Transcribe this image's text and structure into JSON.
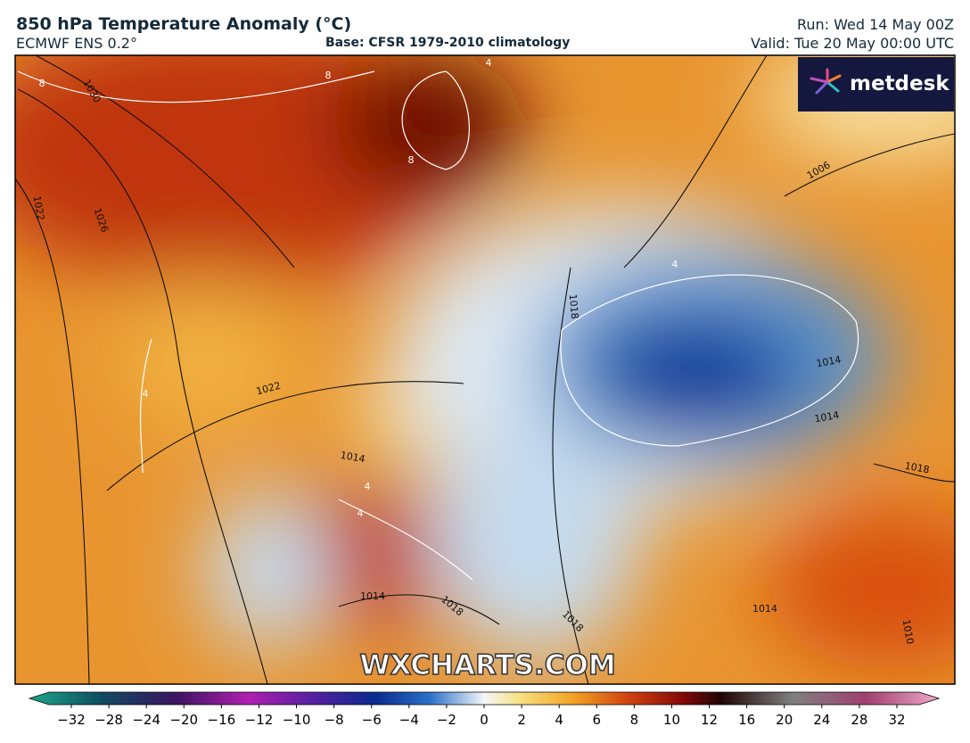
{
  "header": {
    "title": "850 hPa Temperature Anomaly (°C)",
    "model": "ECMWF ENS 0.2°",
    "base": "Base: CFSR 1979-2010 climatology",
    "run": "Run: Wed 14 May 00Z",
    "valid": "Valid: Tue 20 May 00:00 UTC"
  },
  "logo": "metdesk",
  "watermark": "WXCHARTS.COM",
  "contour_labels": [
    "8",
    "8",
    "1030",
    "4",
    "8",
    "1022",
    "1026",
    "1006",
    "4",
    "1018",
    "1014",
    "4",
    "1022",
    "1014",
    "4",
    "4",
    "1014",
    "1018",
    "1014",
    "1018",
    "1018",
    "1014",
    "1010"
  ],
  "colorbar": {
    "labels": [
      "−32",
      "−28",
      "−24",
      "−20",
      "−16",
      "−12",
      "−10",
      "−8",
      "−6",
      "−4",
      "−2",
      "0",
      "2",
      "4",
      "6",
      "8",
      "10",
      "12",
      "16",
      "20",
      "24",
      "28",
      "32"
    ]
  }
}
